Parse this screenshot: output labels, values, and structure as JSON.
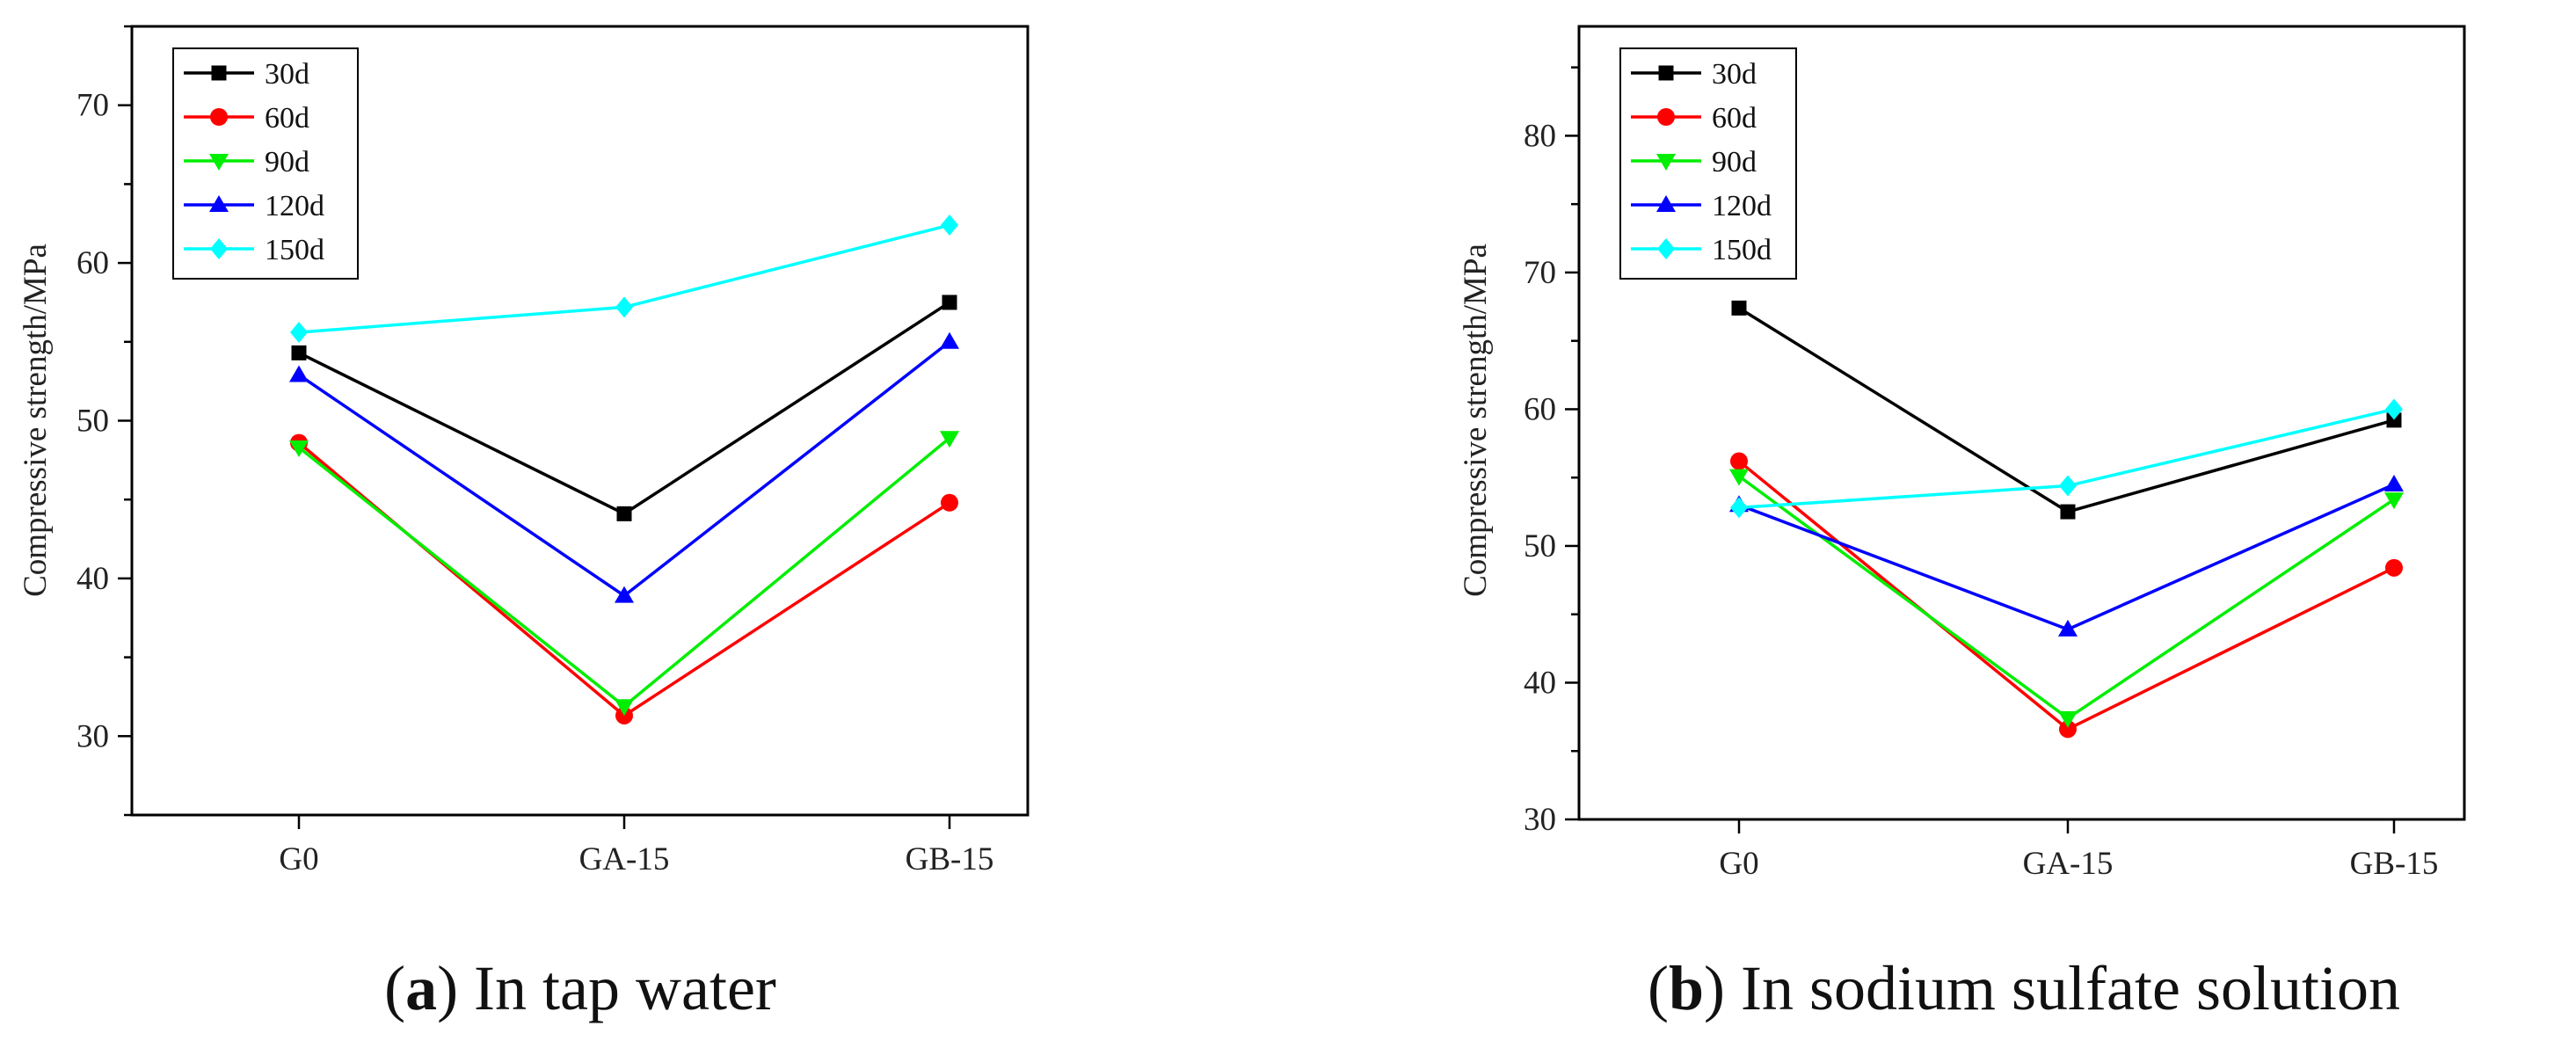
{
  "chart_data": [
    {
      "type": "line",
      "categories": [
        "G0",
        "GA-15",
        "GB-15"
      ],
      "ylabel": "Compressive strength/MPa",
      "ylim": [
        25,
        75
      ],
      "yticks": [
        30,
        40,
        50,
        60,
        70
      ],
      "legend": "top-left",
      "grid": false,
      "caption": {
        "label": "a",
        "text": ") In tap water"
      },
      "series": [
        {
          "name": "30d",
          "color": "#000000",
          "marker": "square",
          "values": [
            54.3,
            44.1,
            57.5
          ]
        },
        {
          "name": "60d",
          "color": "#ff0000",
          "marker": "circle",
          "values": [
            48.6,
            31.3,
            44.8
          ]
        },
        {
          "name": "90d",
          "color": "#00ee00",
          "marker": "triangle-down",
          "values": [
            48.3,
            31.9,
            48.9
          ]
        },
        {
          "name": "120d",
          "color": "#0000ff",
          "marker": "triangle-up",
          "values": [
            52.9,
            38.9,
            55.0
          ]
        },
        {
          "name": "150d",
          "color": "#00ffff",
          "marker": "diamond",
          "values": [
            55.6,
            57.2,
            62.4
          ]
        }
      ]
    },
    {
      "type": "line",
      "categories": [
        "G0",
        "GA-15",
        "GB-15"
      ],
      "ylabel": "Compressive strength/MPa",
      "ylim": [
        30,
        88
      ],
      "yticks": [
        30,
        40,
        50,
        60,
        70,
        80
      ],
      "legend": "top-left",
      "grid": false,
      "caption": {
        "label": "b",
        "text": ") In sodium sulfate solution"
      },
      "series": [
        {
          "name": "30d",
          "color": "#000000",
          "marker": "square",
          "values": [
            67.4,
            52.5,
            59.2
          ]
        },
        {
          "name": "60d",
          "color": "#ff0000",
          "marker": "circle",
          "values": [
            56.2,
            36.6,
            48.4
          ]
        },
        {
          "name": "90d",
          "color": "#00ee00",
          "marker": "triangle-down",
          "values": [
            55.1,
            37.4,
            53.4
          ]
        },
        {
          "name": "120d",
          "color": "#0000ff",
          "marker": "triangle-up",
          "values": [
            53.0,
            43.9,
            54.5
          ]
        },
        {
          "name": "150d",
          "color": "#00ffff",
          "marker": "diamond",
          "values": [
            52.8,
            54.4,
            60.0
          ]
        }
      ]
    }
  ]
}
